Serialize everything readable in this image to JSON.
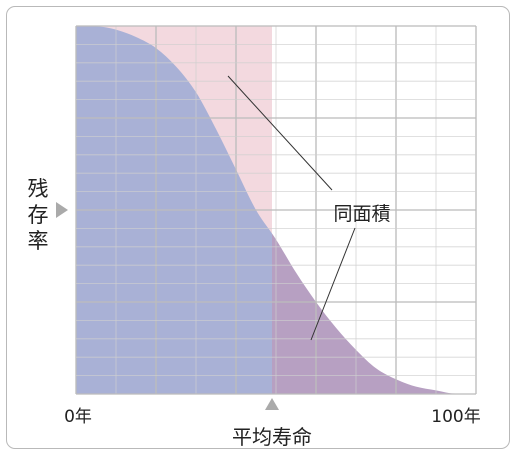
{
  "colors": {
    "pink_region": "#f3d9df",
    "blue_region": "#a9b1d6",
    "purple_region": "#b7a0c2",
    "grid_line": "#cfcfcf",
    "grid_major": "#bdbdbd",
    "pointer": "#aaaaaa",
    "leader_line": "#333333"
  },
  "chart_data": {
    "type": "area",
    "title": "",
    "xlabel": "平均寿命",
    "ylabel": "残存率",
    "x_tick_labels": {
      "start": "0年",
      "end": "100年"
    },
    "annotation": "同面積",
    "xlim": [
      0,
      100
    ],
    "ylim": [
      0,
      1
    ],
    "mean_lifetime": 49,
    "grid": true,
    "curve": {
      "x": [
        0,
        5,
        10,
        15,
        20,
        25,
        30,
        35,
        40,
        45,
        50,
        55,
        60,
        65,
        70,
        75,
        80,
        85,
        90,
        95,
        100
      ],
      "y": [
        1.0,
        1.0,
        0.99,
        0.97,
        0.94,
        0.89,
        0.82,
        0.72,
        0.61,
        0.5,
        0.42,
        0.33,
        0.25,
        0.18,
        0.12,
        0.07,
        0.04,
        0.02,
        0.01,
        0.0,
        0.0
      ]
    }
  }
}
